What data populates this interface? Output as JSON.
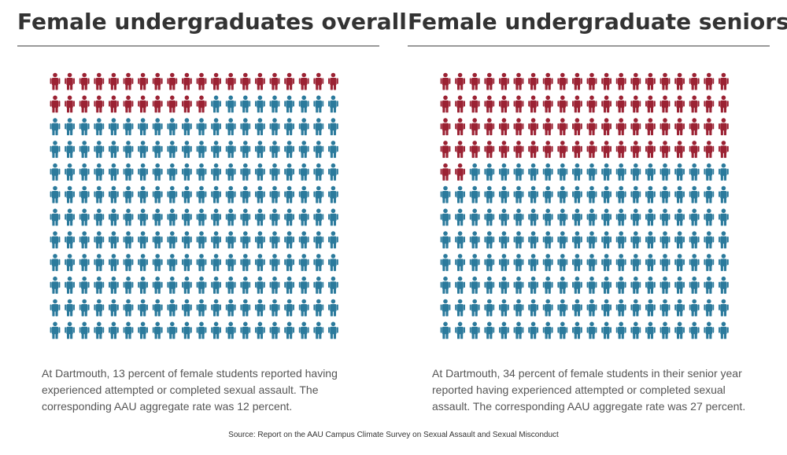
{
  "colors": {
    "highlight": "#9b2233",
    "base": "#2b7a9c"
  },
  "chart_data": [
    {
      "type": "pictogram",
      "title": "Female undergraduates overall",
      "columns": 20,
      "rows": 12,
      "total_icons": 240,
      "highlighted_icons": 31,
      "highlighted_percent": 13,
      "icon": "person-icon",
      "caption": "At Dartmouth, 13 percent of female students reported having experienced attempted or completed sexual assault. The corresponding AAU aggregate rate was 12 percent."
    },
    {
      "type": "pictogram",
      "title": "Female undergraduate seniors",
      "columns": 20,
      "rows": 12,
      "total_icons": 240,
      "highlighted_icons": 82,
      "highlighted_percent": 34,
      "icon": "person-icon",
      "caption": "At Dartmouth, 34 percent of female students in their senior year reported having experienced attempted or completed sexual assault. The corresponding AAU aggregate rate was 27 percent."
    }
  ],
  "source": "Source: Report on the AAU Campus Climate Survey on Sexual Assault and Sexual Misconduct"
}
